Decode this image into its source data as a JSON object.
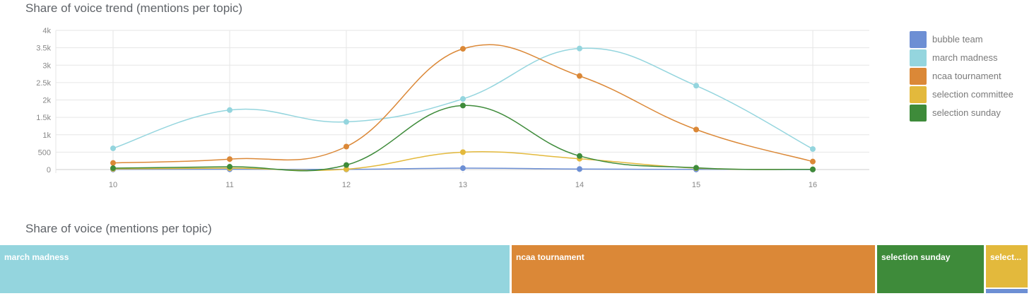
{
  "trend": {
    "title": "Share of voice trend (mentions per topic)"
  },
  "share": {
    "title": "Share of voice (mentions per topic)",
    "tiles": [
      {
        "label": "march madness",
        "color": "#94d5de"
      },
      {
        "label": "ncaa tournament",
        "color": "#db8837"
      },
      {
        "label": "selection sunday",
        "color": "#3e8b3a"
      },
      {
        "label": "select...",
        "color": "#e3b93c"
      },
      {
        "label": "",
        "color": "#6d8fd4"
      }
    ]
  },
  "chart_data": [
    {
      "type": "line",
      "title": "Share of voice trend (mentions per topic)",
      "x": [
        10,
        11,
        12,
        13,
        14,
        15,
        16
      ],
      "ylim": [
        0,
        4000
      ],
      "yticks": [
        {
          "value": 0,
          "label": "0"
        },
        {
          "value": 500,
          "label": "500"
        },
        {
          "value": 1000,
          "label": "1k"
        },
        {
          "value": 1500,
          "label": "1.5k"
        },
        {
          "value": 2000,
          "label": "2k"
        },
        {
          "value": 2500,
          "label": "2.5k"
        },
        {
          "value": 3000,
          "label": "3k"
        },
        {
          "value": 3500,
          "label": "3.5k"
        },
        {
          "value": 4000,
          "label": "4k"
        }
      ],
      "xticks": [
        "10",
        "11",
        "12",
        "13",
        "14",
        "15",
        "16"
      ],
      "grid": true,
      "smooth": true,
      "legend": "right",
      "series": [
        {
          "name": "bubble team",
          "color": "#6d8fd4",
          "values": [
            5,
            10,
            5,
            40,
            15,
            5,
            0
          ]
        },
        {
          "name": "march madness",
          "color": "#94d5de",
          "values": [
            610,
            1710,
            1370,
            2030,
            3480,
            2410,
            590
          ]
        },
        {
          "name": "ncaa tournament",
          "color": "#db8837",
          "values": [
            190,
            300,
            660,
            3470,
            2690,
            1150,
            230
          ]
        },
        {
          "name": "selection committee",
          "color": "#e3b93c",
          "values": [
            20,
            40,
            10,
            500,
            310,
            40,
            5
          ]
        },
        {
          "name": "selection sunday",
          "color": "#3e8b3a",
          "values": [
            40,
            80,
            130,
            1840,
            390,
            50,
            5
          ]
        }
      ]
    },
    {
      "type": "treemap",
      "title": "Share of voice (mentions per topic)",
      "items": [
        {
          "name": "march madness",
          "value": 12200,
          "color": "#94d5de"
        },
        {
          "name": "ncaa tournament",
          "value": 8690,
          "color": "#db8837"
        },
        {
          "name": "selection sunday",
          "value": 2535,
          "color": "#3e8b3a"
        },
        {
          "name": "selection committee",
          "value": 925,
          "color": "#e3b93c"
        },
        {
          "name": "bubble team",
          "value": 80,
          "color": "#6d8fd4"
        }
      ]
    }
  ]
}
